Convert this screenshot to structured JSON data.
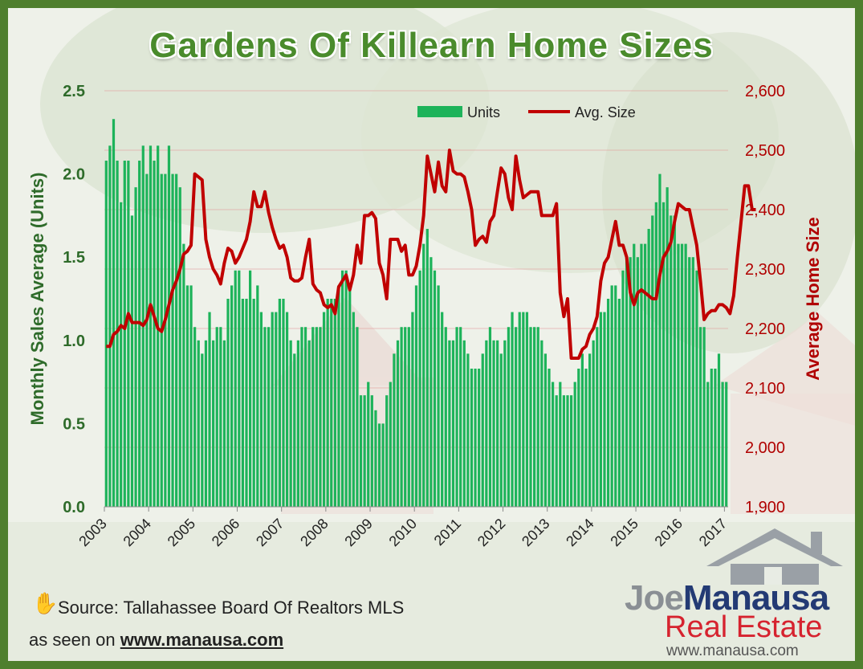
{
  "title": "Gardens Of Killearn Home Sizes",
  "source": {
    "hand_icon": "hand-icon",
    "source_text": "Source: Tallahassee Board Of Realtors MLS",
    "seen_prefix": "as seen on",
    "seen_url": "www.manausa.com"
  },
  "logo": {
    "joe": "Joe",
    "manausa": "Manausa",
    "real_estate": "Real Estate",
    "url": "www.manausa.com"
  },
  "colors": {
    "units": "#1db35a",
    "avg_size": "#c00000",
    "title": "#4a8b2c",
    "frame": "#4f7f2e"
  },
  "chart_data": {
    "type": "bar+line",
    "x_ticks": [
      "2003",
      "2004",
      "2005",
      "2006",
      "2007",
      "2008",
      "2009",
      "2010",
      "2011",
      "2012",
      "2013",
      "2014",
      "2015",
      "2016",
      "2017"
    ],
    "ylabel_left": "Monthly Sales Average (Units)",
    "ylabel_right": "Average Home Size",
    "ylim_left": [
      0,
      2.5
    ],
    "yticks_left": [
      "0.0",
      "0.5",
      "1.0",
      "1.5",
      "2.0",
      "2.5"
    ],
    "ylim_right": [
      1900,
      2600
    ],
    "yticks_right": [
      "1,900",
      "2,000",
      "2,100",
      "2,200",
      "2,300",
      "2,400",
      "2,500",
      "2,600"
    ],
    "legend": [
      {
        "name": "Units",
        "kind": "bar"
      },
      {
        "name": "Avg. Size",
        "kind": "line"
      }
    ],
    "legend_position": "top-center",
    "grid": true,
    "start": "2003-01",
    "series": [
      {
        "name": "Units",
        "axis": "left",
        "values": [
          2.08,
          2.17,
          2.33,
          2.08,
          1.83,
          2.08,
          2.08,
          1.75,
          1.92,
          2.08,
          2.17,
          2.0,
          2.17,
          2.08,
          2.17,
          2.0,
          2.0,
          2.17,
          2.0,
          2.0,
          1.92,
          1.58,
          1.33,
          1.33,
          1.08,
          1.0,
          0.92,
          1.0,
          1.17,
          1.0,
          1.08,
          1.08,
          1.0,
          1.25,
          1.33,
          1.42,
          1.42,
          1.25,
          1.25,
          1.42,
          1.25,
          1.33,
          1.17,
          1.08,
          1.08,
          1.17,
          1.17,
          1.25,
          1.25,
          1.17,
          1.0,
          0.92,
          1.0,
          1.08,
          1.08,
          1.0,
          1.08,
          1.08,
          1.08,
          1.17,
          1.25,
          1.25,
          1.25,
          1.33,
          1.42,
          1.42,
          1.33,
          1.17,
          1.08,
          0.67,
          0.67,
          0.75,
          0.67,
          0.58,
          0.5,
          0.5,
          0.67,
          0.75,
          0.92,
          1.0,
          1.08,
          1.08,
          1.08,
          1.17,
          1.33,
          1.42,
          1.58,
          1.67,
          1.5,
          1.42,
          1.33,
          1.17,
          1.08,
          1.0,
          1.0,
          1.08,
          1.08,
          1.0,
          0.92,
          0.83,
          0.83,
          0.83,
          0.92,
          1.0,
          1.08,
          1.0,
          1.0,
          0.92,
          1.0,
          1.08,
          1.17,
          1.08,
          1.17,
          1.17,
          1.17,
          1.08,
          1.08,
          1.08,
          1.0,
          0.92,
          0.83,
          0.75,
          0.67,
          0.75,
          0.67,
          0.67,
          0.67,
          0.75,
          0.83,
          0.92,
          0.83,
          0.92,
          1.0,
          1.08,
          1.17,
          1.17,
          1.25,
          1.33,
          1.33,
          1.25,
          1.42,
          1.5,
          1.5,
          1.58,
          1.5,
          1.58,
          1.58,
          1.67,
          1.75,
          1.83,
          2.0,
          1.83,
          1.92,
          1.75,
          1.75,
          1.58,
          1.58,
          1.58,
          1.5,
          1.5,
          1.42,
          1.08,
          1.08,
          0.75,
          0.83,
          0.83,
          0.92,
          0.75,
          0.75
        ]
      },
      {
        "name": "Avg. Size",
        "axis": "right",
        "values": [
          2170,
          2170,
          2190,
          2195,
          2205,
          2200,
          2225,
          2210,
          2210,
          2210,
          2205,
          2215,
          2240,
          2220,
          2200,
          2195,
          2215,
          2240,
          2265,
          2280,
          2300,
          2325,
          2330,
          2340,
          2460,
          2455,
          2450,
          2350,
          2320,
          2300,
          2290,
          2275,
          2310,
          2335,
          2330,
          2310,
          2320,
          2335,
          2350,
          2380,
          2430,
          2405,
          2405,
          2430,
          2395,
          2370,
          2350,
          2335,
          2340,
          2320,
          2285,
          2280,
          2280,
          2285,
          2320,
          2350,
          2275,
          2265,
          2260,
          2240,
          2235,
          2240,
          2225,
          2270,
          2280,
          2290,
          2265,
          2290,
          2340,
          2310,
          2390,
          2390,
          2395,
          2385,
          2310,
          2290,
          2250,
          2350,
          2350,
          2350,
          2330,
          2340,
          2290,
          2290,
          2305,
          2340,
          2390,
          2490,
          2460,
          2430,
          2480,
          2440,
          2430,
          2500,
          2465,
          2460,
          2460,
          2455,
          2430,
          2400,
          2340,
          2350,
          2355,
          2345,
          2380,
          2390,
          2430,
          2470,
          2460,
          2420,
          2400,
          2490,
          2450,
          2420,
          2425,
          2430,
          2430,
          2430,
          2390,
          2390,
          2390,
          2390,
          2410,
          2260,
          2220,
          2250,
          2150,
          2150,
          2150,
          2165,
          2170,
          2190,
          2200,
          2220,
          2280,
          2310,
          2320,
          2350,
          2380,
          2340,
          2340,
          2320,
          2260,
          2240,
          2260,
          2265,
          2260,
          2255,
          2250,
          2250,
          2290,
          2320,
          2330,
          2345,
          2380,
          2410,
          2405,
          2400,
          2400,
          2370,
          2340,
          2280,
          2215,
          2225,
          2230,
          2230,
          2240,
          2240,
          2235,
          2225,
          2255,
          2320,
          2380,
          2440,
          2440,
          2400,
          2400
        ]
      }
    ]
  }
}
